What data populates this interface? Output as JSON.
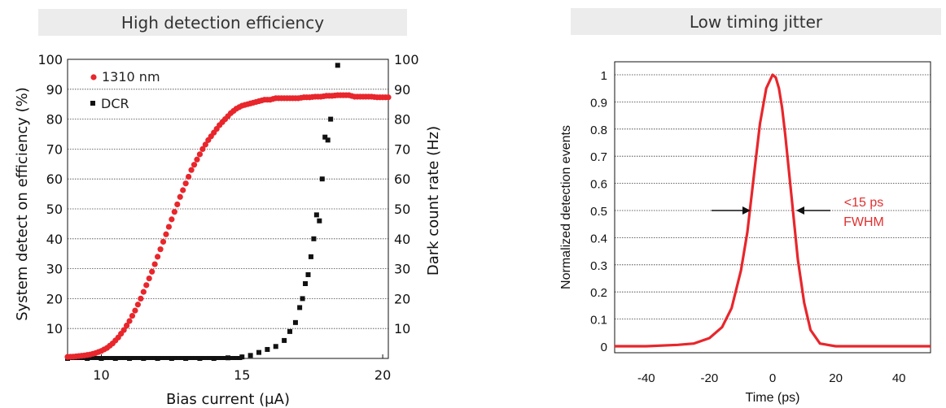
{
  "chart_data": [
    {
      "type": "scatter",
      "title": "High detection efficiency",
      "xlabel": "Bias current (μA)",
      "ylabel": "System detect on efficiency (%)",
      "y2label": "Dark count rate (Hz)",
      "xlim": [
        8.8,
        20.2
      ],
      "ylim": [
        0,
        100
      ],
      "y2lim": [
        0,
        100
      ],
      "xticks": [
        "10",
        "15",
        "20"
      ],
      "yticks": [
        "10",
        "20",
        "30",
        "40",
        "50",
        "60",
        "70",
        "80",
        "90",
        "100"
      ],
      "y2ticks": [
        "10",
        "20",
        "30",
        "40",
        "50",
        "60",
        "70",
        "80",
        "90",
        "100"
      ],
      "grid": true,
      "legend": "top-left",
      "series": [
        {
          "name": "1310 nm",
          "color": "#e8262c",
          "marker": "circle",
          "x": [
            8.8,
            9.0,
            9.2,
            9.4,
            9.6,
            9.8,
            10.0,
            10.2,
            10.4,
            10.6,
            10.8,
            11.0,
            11.2,
            11.4,
            11.6,
            11.8,
            12.0,
            12.2,
            12.4,
            12.6,
            12.8,
            13.0,
            13.2,
            13.4,
            13.6,
            13.8,
            14.0,
            14.2,
            14.4,
            14.6,
            14.8,
            15.0,
            15.2,
            15.4,
            15.6,
            15.8,
            16.0,
            16.2,
            16.4,
            16.6,
            16.8,
            17.0,
            17.2,
            17.4,
            17.6,
            17.8,
            18.0,
            18.2,
            18.4,
            18.6,
            18.8,
            19.0,
            19.2,
            19.4,
            19.6,
            19.8,
            20.0,
            20.2
          ],
          "values": [
            0.5,
            0.6,
            0.8,
            1.0,
            1.3,
            1.8,
            2.5,
            3.5,
            5.0,
            7.0,
            9.5,
            12.5,
            16,
            20,
            24.5,
            29,
            34,
            39,
            44,
            49,
            54,
            58.5,
            63,
            66.5,
            70,
            73,
            75.5,
            78,
            80,
            82,
            83.5,
            84.5,
            85,
            85.5,
            86,
            86.5,
            86.5,
            87,
            87,
            87,
            87,
            87,
            87.3,
            87.3,
            87.5,
            87.5,
            87.8,
            87.8,
            88,
            88,
            88,
            87.5,
            87.5,
            87.5,
            87.5,
            87.3,
            87.3,
            87.3
          ]
        },
        {
          "name": "DCR",
          "color": "#111111",
          "marker": "square",
          "x": [
            8.8,
            9.5,
            10.0,
            10.5,
            11.0,
            11.5,
            12.0,
            12.5,
            13.0,
            13.5,
            14.0,
            14.5,
            15.0,
            15.3,
            15.6,
            15.9,
            16.2,
            16.5,
            16.7,
            16.9,
            17.05,
            17.15,
            17.25,
            17.35,
            17.45,
            17.55,
            17.65,
            17.75,
            17.85,
            17.95,
            18.05,
            18.15,
            18.4
          ],
          "values": [
            0,
            0,
            0,
            0,
            0,
            0,
            0,
            0,
            0,
            0,
            0,
            0.2,
            0.5,
            1,
            2,
            3,
            4,
            6,
            9,
            12,
            17,
            20,
            25,
            28,
            34,
            40,
            48,
            46,
            60,
            74,
            73,
            80,
            98
          ]
        }
      ]
    },
    {
      "type": "line",
      "title": "Low timing jitter",
      "xlabel": "Time (ps)",
      "ylabel": "Normalized detection events",
      "xlim": [
        -50,
        50
      ],
      "ylim": [
        -0.02,
        1.05
      ],
      "xticks": [
        "-40",
        "-20",
        "0",
        "20",
        "40"
      ],
      "yticks": [
        "0",
        "0.1",
        "0.2",
        "0.3",
        "0.4",
        "0.5",
        "0.6",
        "0.7",
        "0.8",
        "0.9",
        "1"
      ],
      "grid": true,
      "series": [
        {
          "color": "#e8262c",
          "x": [
            -50,
            -40,
            -30,
            -25,
            -20,
            -16,
            -13,
            -10,
            -8,
            -6,
            -4,
            -2,
            0,
            1,
            2,
            3,
            4,
            6,
            8,
            10,
            12,
            15,
            20,
            30,
            40,
            50
          ],
          "values": [
            0,
            0,
            0.005,
            0.01,
            0.03,
            0.07,
            0.14,
            0.28,
            0.42,
            0.62,
            0.82,
            0.95,
            1.0,
            0.99,
            0.95,
            0.88,
            0.78,
            0.55,
            0.32,
            0.16,
            0.06,
            0.01,
            0,
            0,
            0,
            0
          ]
        }
      ],
      "annotations": [
        "<15 ps",
        "FWHM"
      ]
    }
  ]
}
